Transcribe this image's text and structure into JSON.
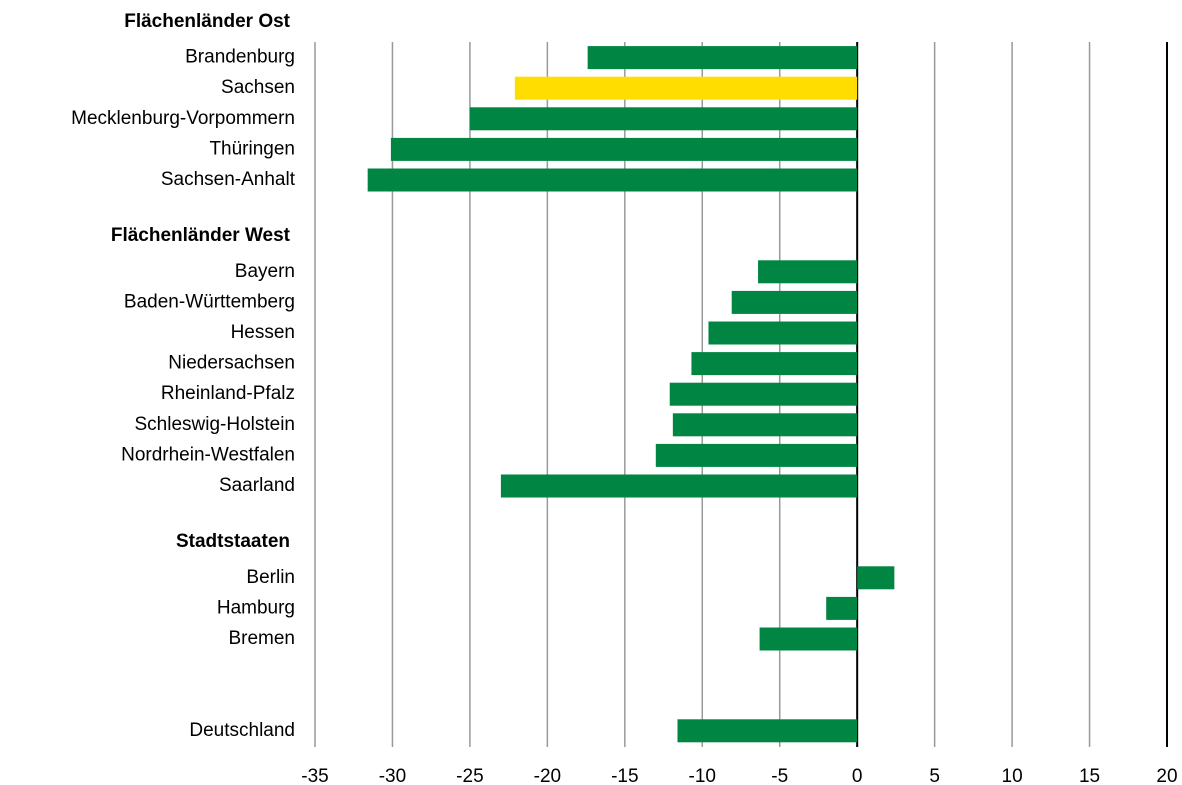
{
  "chart_data": {
    "type": "bar",
    "orientation": "horizontal",
    "groups": [
      {
        "name": "Flächenländer Ost",
        "categories": [
          "Brandenburg",
          "Sachsen",
          "Mecklenburg-Vorpommern",
          "Thüringen",
          "Sachsen-Anhalt"
        ],
        "values": [
          -17.4,
          -22.1,
          -25.0,
          -30.1,
          -31.6
        ],
        "colors": [
          "#008542",
          "#ffdd00",
          "#008542",
          "#008542",
          "#008542"
        ]
      },
      {
        "name": "Flächenländer West",
        "categories": [
          "Bayern",
          "Baden-Württemberg",
          "Hessen",
          "Niedersachsen",
          "Rheinland-Pfalz",
          "Schleswig-Holstein",
          "Nordrhein-Westfalen",
          "Saarland"
        ],
        "values": [
          -6.4,
          -8.1,
          -9.6,
          -10.7,
          -12.1,
          -11.9,
          -13.0,
          -23.0
        ],
        "colors": [
          "#008542",
          "#008542",
          "#008542",
          "#008542",
          "#008542",
          "#008542",
          "#008542",
          "#008542"
        ]
      },
      {
        "name": "Stadtstaaten",
        "categories": [
          "Berlin",
          "Hamburg",
          "Bremen"
        ],
        "values": [
          2.4,
          -2.0,
          -6.3
        ],
        "colors": [
          "#008542",
          "#008542",
          "#008542"
        ]
      },
      {
        "categories": [
          "Deutschland"
        ],
        "values": [
          -11.6
        ],
        "colors": [
          "#008542"
        ]
      }
    ],
    "xlim": [
      -35,
      20
    ],
    "xticks": [
      -35,
      -30,
      -25,
      -20,
      -15,
      -10,
      -5,
      0,
      5,
      10,
      15,
      20
    ],
    "grid": true
  }
}
